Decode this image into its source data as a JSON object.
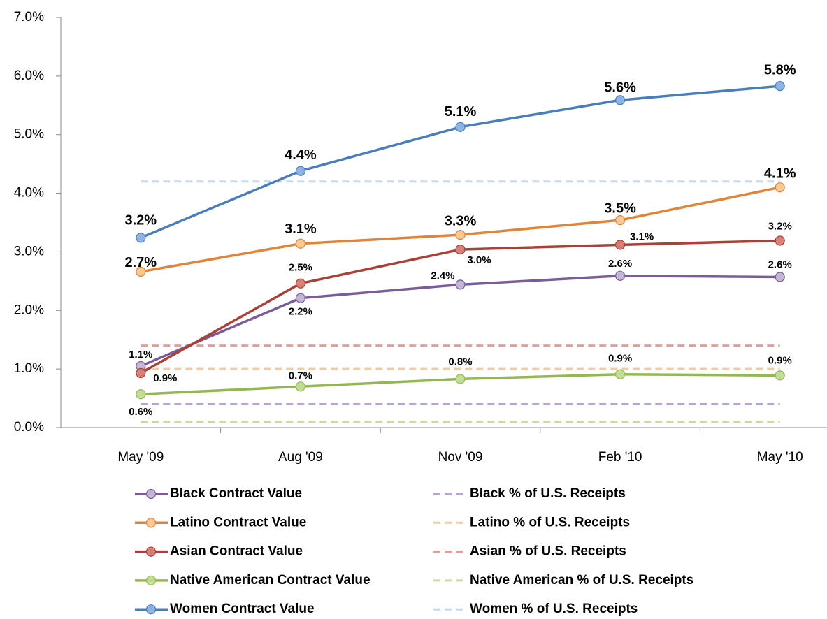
{
  "chart_data": {
    "type": "line",
    "categories": [
      "May '09",
      "Aug '09",
      "Nov '09",
      "Feb '10",
      "May '10"
    ],
    "ylim": [
      0,
      7
    ],
    "yticks": [
      {
        "value": 0,
        "label": "0.0%"
      },
      {
        "value": 1,
        "label": "1.0%"
      },
      {
        "value": 2,
        "label": "2.0%"
      },
      {
        "value": 3,
        "label": "3.0%"
      },
      {
        "value": 4,
        "label": "4.0%"
      },
      {
        "value": 5,
        "label": "5.0%"
      },
      {
        "value": 6,
        "label": "6.0%"
      },
      {
        "value": 7,
        "label": "7.0%"
      }
    ],
    "series": [
      {
        "name": "Black Contract Value",
        "color": "#7b5c9b",
        "marker_color": "#c3b5d6",
        "values": [
          1.05,
          2.21,
          2.44,
          2.59,
          2.57
        ],
        "value_labels": [
          "1.1%",
          "2.2%",
          "2.4%",
          "2.6%",
          "2.6%"
        ]
      },
      {
        "name": "Latino Contract Value",
        "color": "#e0843a",
        "marker_color": "#f9c895",
        "values": [
          2.66,
          3.14,
          3.29,
          3.54,
          4.1
        ],
        "value_labels": [
          "2.7%",
          "3.1%",
          "3.3%",
          "3.5%",
          "4.1%"
        ]
      },
      {
        "name": "Asian Contract Value",
        "color": "#a84138",
        "marker_color": "#d88078",
        "values": [
          0.93,
          2.46,
          3.04,
          3.12,
          3.19
        ],
        "value_labels": [
          "0.9%",
          "2.5%",
          "3.0%",
          "3.1%",
          "3.2%"
        ]
      },
      {
        "name": "Native American Contract Value",
        "color": "#93b853",
        "marker_color": "#c3dc96",
        "values": [
          0.57,
          0.7,
          0.83,
          0.91,
          0.89
        ],
        "value_labels": [
          "0.6%",
          "0.7%",
          "0.8%",
          "0.9%",
          "0.9%"
        ]
      },
      {
        "name": "Women Contract Value",
        "color": "#4a7ebb",
        "marker_color": "#8fb4e3",
        "values": [
          3.24,
          4.38,
          5.13,
          5.59,
          5.83
        ],
        "value_labels": [
          "3.2%",
          "4.4%",
          "5.1%",
          "5.6%",
          "5.8%"
        ]
      }
    ],
    "reference_lines": [
      {
        "name": "Black % of U.S. Receipts",
        "color": "#b7a6cf",
        "value": 0.4
      },
      {
        "name": "Latino % of U.S. Receipts",
        "color": "#f9c99a",
        "value": 1.0
      },
      {
        "name": "Asian % of U.S. Receipts",
        "color": "#e59c99",
        "value": 1.4
      },
      {
        "name": "Native American % of U.S. Receipts",
        "color": "#c9dd9e",
        "value": 0.1
      },
      {
        "name": "Women % of U.S. Receipts",
        "color": "#c5d8ee",
        "value": 4.2
      }
    ]
  }
}
